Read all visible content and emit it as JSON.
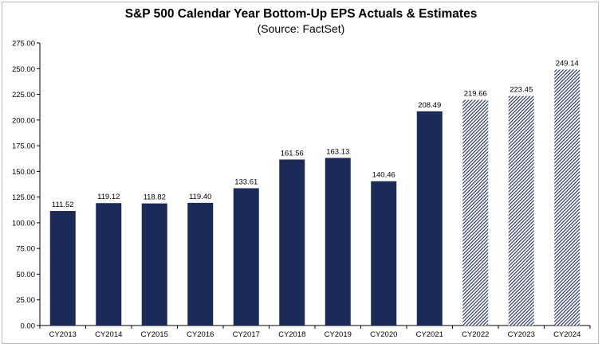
{
  "chart_data": {
    "type": "bar",
    "title": "S&P 500 Calendar Year Bottom-Up EPS Actuals & Estimates",
    "subtitle": "(Source: FactSet)",
    "xlabel": "",
    "ylabel": "",
    "ylim": [
      0,
      275
    ],
    "yticks": [
      "0.00",
      "25.00",
      "50.00",
      "75.00",
      "100.00",
      "125.00",
      "150.00",
      "175.00",
      "200.00",
      "225.00",
      "250.00",
      "275.00"
    ],
    "grid": false,
    "legend": "none",
    "categories": [
      "CY2013",
      "CY2014",
      "CY2015",
      "CY2016",
      "CY2017",
      "CY2018",
      "CY2019",
      "CY2020",
      "CY2021",
      "CY2022",
      "CY2023",
      "CY2024"
    ],
    "values": [
      111.52,
      119.12,
      118.82,
      119.4,
      133.61,
      161.56,
      163.13,
      140.46,
      208.49,
      219.66,
      223.45,
      249.14
    ],
    "data_labels": [
      "111.52",
      "119.12",
      "118.82",
      "119.40",
      "133.61",
      "161.56",
      "163.13",
      "140.46",
      "208.49",
      "219.66",
      "223.45",
      "249.14"
    ],
    "bar_style": [
      "solid",
      "solid",
      "solid",
      "solid",
      "solid",
      "solid",
      "solid",
      "solid",
      "solid",
      "hatched",
      "hatched",
      "hatched"
    ],
    "colors": {
      "bar": "#1c2a57",
      "hatch_line": "#1c2a57",
      "hatch_bg": "#ffffff"
    }
  }
}
